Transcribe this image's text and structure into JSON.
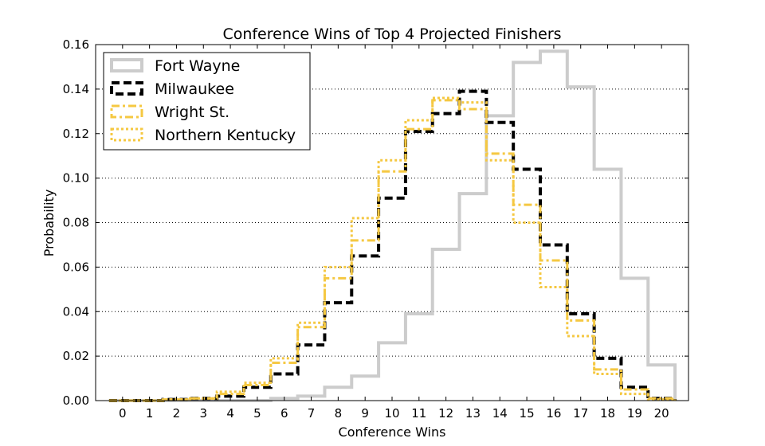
{
  "chart_data": {
    "type": "line",
    "title": "Conference Wins of Top 4 Projected Finishers",
    "xlabel": "Conference Wins",
    "ylabel": "Probability",
    "xlim": [
      -1,
      21
    ],
    "ylim": [
      0.0,
      0.16
    ],
    "x": [
      0,
      1,
      2,
      3,
      4,
      5,
      6,
      7,
      8,
      9,
      10,
      11,
      12,
      13,
      14,
      15,
      16,
      17,
      18,
      19,
      20
    ],
    "x_tick_labels": [
      "0",
      "1",
      "2",
      "3",
      "4",
      "5",
      "6",
      "7",
      "8",
      "9",
      "10",
      "11",
      "12",
      "13",
      "14",
      "15",
      "16",
      "17",
      "18",
      "19",
      "20"
    ],
    "y_tick_labels": [
      "0.00",
      "0.02",
      "0.04",
      "0.06",
      "0.08",
      "0.10",
      "0.12",
      "0.14",
      "0.16"
    ],
    "y_ticks": [
      0.0,
      0.02,
      0.04,
      0.06,
      0.08,
      0.1,
      0.12,
      0.14,
      0.16
    ],
    "grid": "horizontal dotted",
    "legend_position": "top-left",
    "series": [
      {
        "name": "Fort Wayne",
        "color": "#cccccc",
        "style": "solid",
        "values": [
          0.0,
          0.0,
          0.0,
          0.0,
          0.0,
          0.0,
          0.001,
          0.002,
          0.006,
          0.011,
          0.026,
          0.039,
          0.068,
          0.093,
          0.128,
          0.152,
          0.157,
          0.141,
          0.104,
          0.055,
          0.016
        ]
      },
      {
        "name": "Milwaukee",
        "color": "#000000",
        "style": "dashed",
        "values": [
          0.0,
          0.0,
          0.0005,
          0.001,
          0.002,
          0.006,
          0.012,
          0.025,
          0.044,
          0.065,
          0.091,
          0.121,
          0.129,
          0.139,
          0.125,
          0.104,
          0.07,
          0.039,
          0.019,
          0.006,
          0.001
        ]
      },
      {
        "name": "Wright St.",
        "color": "#f5c842",
        "style": "dashdot",
        "values": [
          0.0,
          0.0,
          0.0005,
          0.001,
          0.003,
          0.007,
          0.017,
          0.033,
          0.055,
          0.072,
          0.103,
          0.122,
          0.135,
          0.131,
          0.111,
          0.088,
          0.063,
          0.036,
          0.014,
          0.005,
          0.001
        ]
      },
      {
        "name": "Northern Kentucky",
        "color": "#f5c842",
        "style": "dotted",
        "values": [
          0.0,
          0.0,
          0.0005,
          0.001,
          0.004,
          0.008,
          0.019,
          0.035,
          0.06,
          0.082,
          0.108,
          0.126,
          0.136,
          0.134,
          0.108,
          0.08,
          0.051,
          0.029,
          0.012,
          0.003,
          0.0005
        ]
      }
    ]
  }
}
